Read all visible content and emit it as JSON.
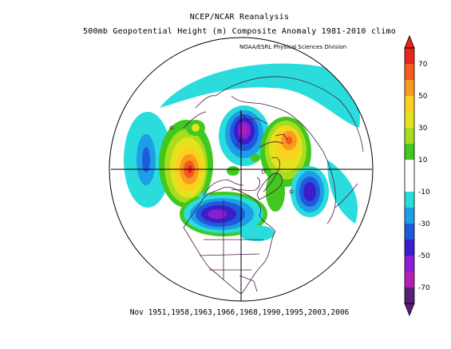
{
  "title_line1": "NCEP/NCAR Reanalysis",
  "title_line2": "500mb Geopotential Height (m) Composite Anomaly 1981-2010 climo",
  "credit": "NOAA/ESRL Physical Sciences Division",
  "footer": "Nov 1951,1958,1963,1966,1968,1990,1995,2003,2006",
  "colorbar": {
    "labels": [
      "70",
      "50",
      "30",
      "10",
      "-10",
      "-30",
      "-50",
      "-70"
    ],
    "bins": [
      {
        "from": 70,
        "to": 80,
        "color": "#e8241c"
      },
      {
        "from": 60,
        "to": 70,
        "color": "#f25a1e"
      },
      {
        "from": 50,
        "to": 60,
        "color": "#f79a1e"
      },
      {
        "from": 40,
        "to": 50,
        "color": "#fbd01e"
      },
      {
        "from": 30,
        "to": 40,
        "color": "#e4e21e"
      },
      {
        "from": 20,
        "to": 30,
        "color": "#a8dc1e"
      },
      {
        "from": 10,
        "to": 20,
        "color": "#40c81e"
      },
      {
        "from": -10,
        "to": 10,
        "color": "#ffffff"
      },
      {
        "from": -20,
        "to": -10,
        "color": "#2adcdc"
      },
      {
        "from": -30,
        "to": -20,
        "color": "#1e9ee6"
      },
      {
        "from": -40,
        "to": -30,
        "color": "#1e5adc"
      },
      {
        "from": -50,
        "to": -40,
        "color": "#3a1ec8"
      },
      {
        "from": -60,
        "to": -50,
        "color": "#8a1ed2"
      },
      {
        "from": -70,
        "to": -60,
        "color": "#b41eb4"
      },
      {
        "from": -80,
        "to": -70,
        "color": "#5a1e78"
      }
    ]
  }
}
